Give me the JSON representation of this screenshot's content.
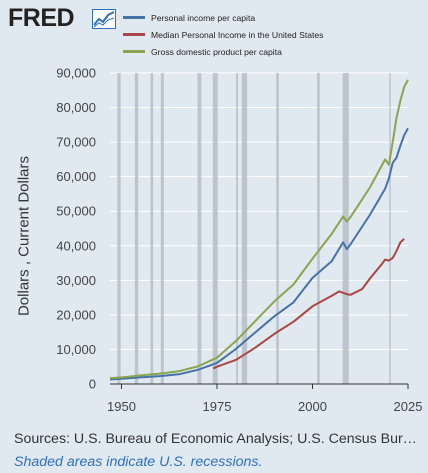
{
  "header": {
    "logo_text": "FRED",
    "logo_icon": "fred-chart-line-icon"
  },
  "chart_data": {
    "type": "line",
    "title": "",
    "xlabel": "",
    "ylabel": "Dollars , Current Dollars",
    "xlim": [
      1947,
      2025
    ],
    "ylim": [
      0,
      90000
    ],
    "x_ticks": [
      1950,
      1975,
      2000,
      2025
    ],
    "y_ticks": [
      0,
      10000,
      20000,
      30000,
      40000,
      50000,
      60000,
      70000,
      80000,
      90000
    ],
    "y_tick_labels": [
      "0",
      "10,000",
      "20,000",
      "30,000",
      "40,000",
      "50,000",
      "60,000",
      "70,000",
      "80,000",
      "90,000"
    ],
    "grid": true,
    "legend_position": "top",
    "recession_shading_color": "#b8c1c9",
    "recessions": [
      [
        1948.9,
        1949.8
      ],
      [
        1953.5,
        1954.4
      ],
      [
        1957.6,
        1958.3
      ],
      [
        1960.3,
        1961.1
      ],
      [
        1969.9,
        1970.9
      ],
      [
        1973.9,
        1975.2
      ],
      [
        1980.0,
        1980.5
      ],
      [
        1981.5,
        1982.9
      ],
      [
        1990.5,
        1991.2
      ],
      [
        2001.2,
        2001.9
      ],
      [
        2007.9,
        2009.5
      ],
      [
        2020.1,
        2020.4
      ]
    ],
    "series": [
      {
        "name": "Personal income per capita",
        "color": "#4572a7",
        "x": [
          1947,
          1950,
          1955,
          1960,
          1965,
          1970,
          1975,
          1980,
          1985,
          1990,
          1995,
          2000,
          2005,
          2008,
          2009,
          2010,
          2015,
          2019,
          2020,
          2021,
          2022,
          2023,
          2024,
          2025
        ],
        "y": [
          1300,
          1500,
          1900,
          2300,
          2800,
          4100,
          6100,
          10200,
          14900,
          19600,
          23600,
          30700,
          35500,
          41000,
          39000,
          40500,
          48900,
          56500,
          59500,
          64000,
          65500,
          69000,
          72000,
          74000
        ]
      },
      {
        "name": "Median Personal Income in the United States",
        "color": "#aa4643",
        "x": [
          1974,
          1975,
          1980,
          1985,
          1990,
          1995,
          2000,
          2005,
          2007,
          2009,
          2010,
          2013,
          2015,
          2018,
          2019,
          2020,
          2021,
          2022,
          2023,
          2024
        ],
        "y": [
          4500,
          5000,
          7000,
          10500,
          14500,
          18000,
          22500,
          25500,
          26800,
          26000,
          25800,
          27500,
          30500,
          34500,
          36000,
          35700,
          36500,
          38500,
          41000,
          42000
        ]
      },
      {
        "name": "Gross domestic product per capita",
        "color": "#89a54e",
        "x": [
          1947,
          1950,
          1955,
          1960,
          1965,
          1970,
          1975,
          1980,
          1985,
          1990,
          1995,
          2000,
          2005,
          2008,
          2009,
          2010,
          2015,
          2019,
          2020,
          2021,
          2022,
          2023,
          2024,
          2025
        ],
        "y": [
          1700,
          1900,
          2500,
          3000,
          3700,
          5100,
          7600,
          12500,
          18200,
          23900,
          28800,
          36300,
          43400,
          48500,
          47000,
          48400,
          56800,
          65000,
          63500,
          70000,
          77000,
          82000,
          86000,
          88000
        ]
      }
    ]
  },
  "footer": {
    "sources": "Sources: U.S. Bureau of Economic Analysis; U.S. Census Bureau",
    "recession_note": "Shaded areas indicate U.S. recessions."
  }
}
